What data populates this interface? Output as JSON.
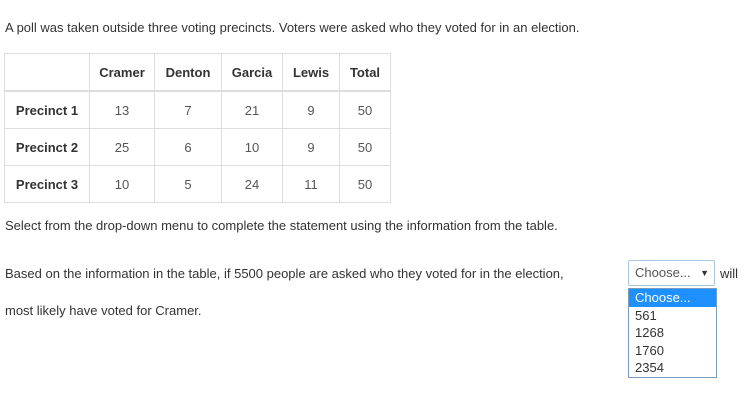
{
  "intro": "A poll was taken outside three voting precincts. Voters were asked who they voted for in an election.",
  "table": {
    "headers": [
      "",
      "Cramer",
      "Denton",
      "Garcia",
      "Lewis",
      "Total"
    ],
    "rows": [
      {
        "label": "Precinct 1",
        "values": [
          "13",
          "7",
          "21",
          "9",
          "50"
        ]
      },
      {
        "label": "Precinct 2",
        "values": [
          "25",
          "6",
          "10",
          "9",
          "50"
        ]
      },
      {
        "label": "Precinct 3",
        "values": [
          "10",
          "5",
          "24",
          "11",
          "50"
        ]
      }
    ]
  },
  "instruction": "Select from the drop-down menu to complete the statement using the information from the table.",
  "statement_before": "Based on the information in the table, if 5500 people are asked who they voted for in the election,",
  "statement_after": "will",
  "statement_line2": "most likely have voted for Cramer.",
  "dropdown": {
    "selected": "Choose...",
    "arrow_icon": "triangle-down",
    "options": [
      "Choose...",
      "561",
      "1268",
      "1760",
      "2354"
    ],
    "highlight_color": "#1e90ff"
  }
}
